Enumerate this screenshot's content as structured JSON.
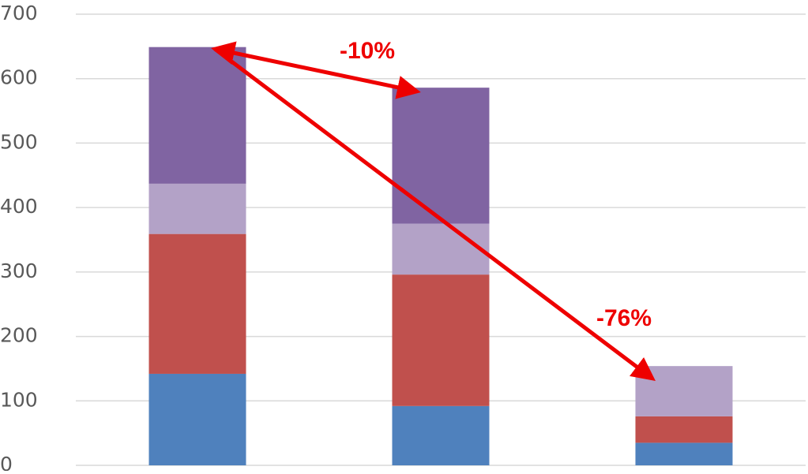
{
  "chart_data": {
    "type": "stacked_bar",
    "categories": [
      null,
      null,
      null
    ],
    "series": [
      {
        "color": "#4f81bd",
        "values": [
          142,
          92,
          35
        ]
      },
      {
        "color": "#c0504d",
        "values": [
          217,
          204,
          41
        ]
      },
      {
        "color": "#b3a2c7",
        "values": [
          78,
          79,
          78
        ]
      },
      {
        "color": "#8064a2",
        "values": [
          212,
          211,
          0
        ]
      }
    ],
    "ylim": [
      0,
      700
    ],
    "yticks": [
      0,
      100,
      200,
      300,
      400,
      500,
      600,
      700
    ],
    "grid": true,
    "annotations": [
      "-10%",
      "-76%"
    ]
  }
}
